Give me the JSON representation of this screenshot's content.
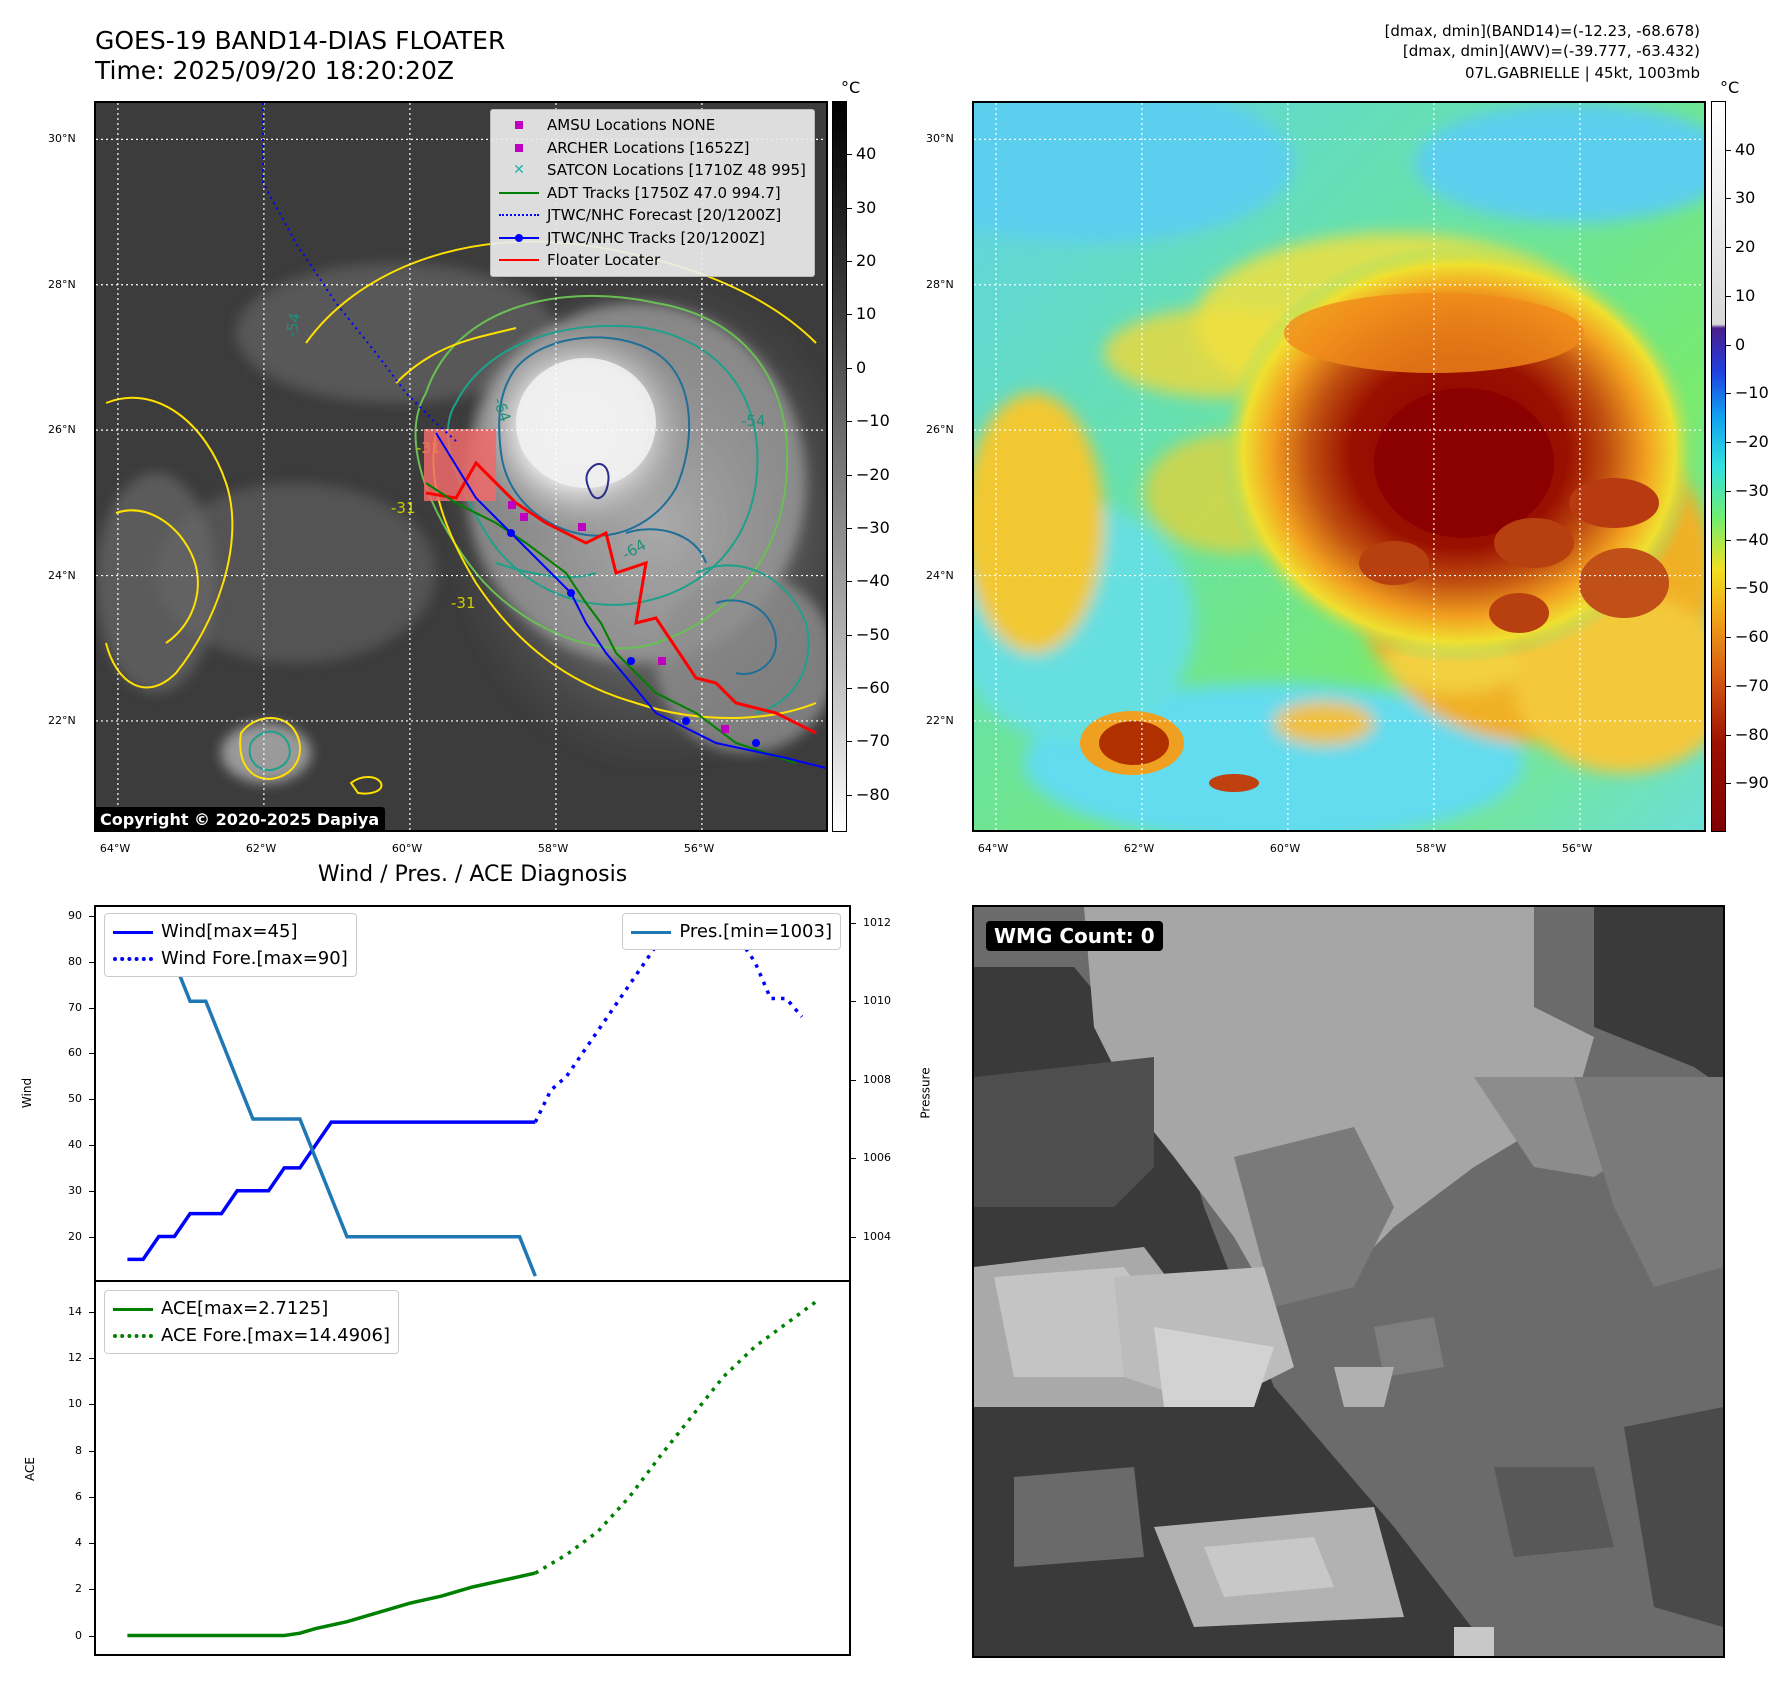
{
  "header": {
    "title_line1": "GOES-19 BAND14-DIAS FLOATER",
    "title_line2": "Time: 2025/09/20 18:20:20Z",
    "info_line1": "[dmax, dmin](BAND14)=(-12.23, -68.678)",
    "info_line2": "[dmax, dmin](AWV)=(-39.777, -63.432)",
    "info_line3": "07L.GABRIELLE | 45kt, 1003mb"
  },
  "map": {
    "lat_labels": [
      "30°N",
      "28°N",
      "26°N",
      "24°N",
      "22°N"
    ],
    "lat_values": [
      30,
      28,
      26,
      24,
      22
    ],
    "lon_labels": [
      "64°W",
      "62°W",
      "60°W",
      "58°W",
      "56°W"
    ],
    "lon_values": [
      -64,
      -62,
      -60,
      -58,
      -56
    ],
    "lon_range": [
      -64.3,
      -54.3
    ],
    "lat_range": [
      20.5,
      30.5
    ],
    "copyright": "Copyright © 2020-2025 Dapiya",
    "contour_labels": [
      "-64",
      "-54",
      "-64",
      "-31",
      "-31",
      "-31",
      "-54"
    ]
  },
  "legend": {
    "items": [
      {
        "label": "AMSU Locations NONE",
        "symbol": "square",
        "color": "#c000c0"
      },
      {
        "label": "ARCHER Locations [1652Z]",
        "symbol": "square",
        "color": "#c000c0"
      },
      {
        "label": "SATCON Locations [1710Z 48 995]",
        "symbol": "x",
        "color": "#20b2aa"
      },
      {
        "label": "ADT Tracks [1750Z 47.0 994.7]",
        "symbol": "line",
        "color": "#008000"
      },
      {
        "label": "JTWC/NHC Forecast [20/1200Z]",
        "symbol": "dotted",
        "color": "#0000ff"
      },
      {
        "label": "JTWC/NHC Tracks [20/1200Z]",
        "symbol": "line-dot",
        "color": "#0000ff"
      },
      {
        "label": "Floater Locater",
        "symbol": "line",
        "color": "#ff0000"
      }
    ]
  },
  "colorbar_gray": {
    "unit": "°C",
    "ticks": [
      "40",
      "30",
      "20",
      "10",
      "0",
      "−10",
      "−20",
      "−30",
      "−40",
      "−50",
      "−60",
      "−70",
      "−80"
    ],
    "tick_values": [
      40,
      30,
      20,
      10,
      0,
      -10,
      -20,
      -30,
      -40,
      -50,
      -60,
      -70,
      -80
    ],
    "range": [
      50,
      -87
    ]
  },
  "colorbar_color": {
    "unit": "°C",
    "ticks": [
      "40",
      "30",
      "20",
      "10",
      "0",
      "−10",
      "−20",
      "−30",
      "−40",
      "−50",
      "−60",
      "−70",
      "−80",
      "−90"
    ],
    "tick_values": [
      40,
      30,
      20,
      10,
      0,
      -10,
      -20,
      -30,
      -40,
      -50,
      -60,
      -70,
      -80,
      -90
    ],
    "range": [
      50,
      -100
    ]
  },
  "diagnosis": {
    "title": "Wind / Pres. / ACE Diagnosis",
    "wmg_label": "WMG Count: 0"
  },
  "chart_data": [
    {
      "type": "line",
      "title": "Wind / Pres. / ACE Diagnosis",
      "ylabel": "Wind",
      "y2label": "Pressure",
      "ylim": [
        10.5,
        92
      ],
      "y2lim": [
        1002.9,
        1012.4
      ],
      "xlim": [
        -2,
        46
      ],
      "yticks": [
        20,
        30,
        40,
        50,
        60,
        70,
        80,
        90
      ],
      "y2ticks": [
        1004,
        1006,
        1008,
        1010,
        1012
      ],
      "series": [
        {
          "name": "Wind[max=45]",
          "axis": "left",
          "style": "solid",
          "color": "#0000ff",
          "x": [
            0,
            1,
            2,
            3,
            4,
            5,
            6,
            7,
            8,
            9,
            10,
            11,
            12,
            13,
            14,
            15,
            16,
            17,
            18,
            19,
            20,
            21,
            22,
            23,
            24,
            25,
            26
          ],
          "y": [
            15,
            15,
            20,
            20,
            25,
            25,
            25,
            30,
            30,
            30,
            35,
            35,
            40,
            45,
            45,
            45,
            45,
            45,
            45,
            45,
            45,
            45,
            45,
            45,
            45,
            45,
            45
          ]
        },
        {
          "name": "Wind Fore.[max=90]",
          "axis": "left",
          "style": "dotted",
          "color": "#0000ff",
          "x": [
            26,
            27,
            28,
            29,
            30,
            31,
            32,
            33,
            34,
            35,
            36,
            37,
            38,
            39,
            40,
            41,
            42,
            43
          ],
          "y": [
            45,
            52,
            55,
            60,
            65,
            70,
            75,
            80,
            85,
            90,
            90,
            90,
            88,
            85,
            80,
            72,
            72,
            68
          ]
        },
        {
          "name": "Pres.[min=1003]",
          "axis": "right",
          "style": "solid",
          "color": "#1f77b4",
          "x": [
            0,
            1,
            2,
            3,
            4,
            5,
            6,
            7,
            8,
            9,
            10,
            11,
            12,
            13,
            14,
            15,
            16,
            17,
            18,
            19,
            20,
            21,
            22,
            23,
            24,
            25,
            26
          ],
          "y": [
            1012,
            1012,
            1011,
            1011,
            1010,
            1010,
            1009,
            1008,
            1007,
            1007,
            1007,
            1007,
            1006,
            1005,
            1004,
            1004,
            1004,
            1004,
            1004,
            1004,
            1004,
            1004,
            1004,
            1004,
            1004,
            1004,
            1003
          ]
        }
      ]
    },
    {
      "type": "line",
      "ylabel": "ACE",
      "ylim": [
        -0.8,
        15.3
      ],
      "xlim": [
        -2,
        46
      ],
      "yticks": [
        0,
        2,
        4,
        6,
        8,
        10,
        12,
        14
      ],
      "series": [
        {
          "name": "ACE[max=2.7125]",
          "style": "solid",
          "color": "#008000",
          "x": [
            0,
            2,
            4,
            6,
            8,
            10,
            11,
            12,
            14,
            16,
            18,
            20,
            22,
            24,
            26
          ],
          "y": [
            0,
            0,
            0,
            0,
            0,
            0,
            0.1,
            0.3,
            0.6,
            1.0,
            1.4,
            1.7,
            2.1,
            2.4,
            2.7
          ]
        },
        {
          "name": "ACE Fore.[max=14.4906]",
          "style": "dotted",
          "color": "#008000",
          "x": [
            26,
            28,
            30,
            32,
            34,
            36,
            38,
            40,
            42,
            44
          ],
          "y": [
            2.7,
            3.5,
            4.5,
            6.0,
            7.8,
            9.5,
            11.2,
            12.5,
            13.5,
            14.5
          ]
        }
      ]
    }
  ]
}
